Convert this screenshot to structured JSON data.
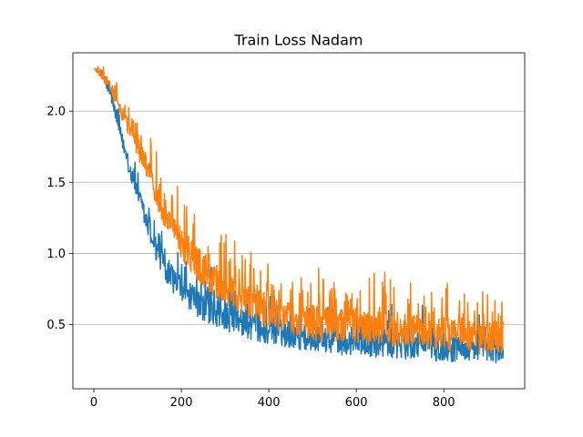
{
  "chart_data": {
    "type": "line",
    "title": "Train Loss Nadam",
    "xlabel": "",
    "ylabel": "",
    "xlim": [
      -48,
      985
    ],
    "ylim": [
      0.05,
      2.41
    ],
    "xticks": [
      0,
      200,
      400,
      600,
      800
    ],
    "xtick_labels": [
      "0",
      "200",
      "400",
      "600",
      "800"
    ],
    "yticks": [
      0.5,
      1.0,
      1.5,
      2.0
    ],
    "ytick_labels": [
      "0.5",
      "1.0",
      "1.5",
      "2.0"
    ],
    "grid": "y-major",
    "legend": "none",
    "colors": {
      "series_1": "#1f77b4",
      "series_2": "#ff7f0e",
      "grid": "#b0b0b0",
      "axes": "#000000"
    },
    "series": [
      {
        "x": [
          0,
          20,
          40,
          60,
          80,
          100,
          120,
          140,
          160,
          180,
          200,
          240,
          280,
          320,
          360,
          400,
          450,
          500,
          550,
          600,
          650,
          700,
          750,
          800,
          850,
          900,
          937
        ],
        "values": [
          2.3,
          2.25,
          2.1,
          1.85,
          1.62,
          1.42,
          1.22,
          1.05,
          0.92,
          0.82,
          0.75,
          0.64,
          0.58,
          0.53,
          0.49,
          0.46,
          0.43,
          0.4,
          0.38,
          0.37,
          0.36,
          0.35,
          0.34,
          0.33,
          0.33,
          0.32,
          0.32
        ],
        "noise": [
          0.0,
          0.04,
          0.06,
          0.08,
          0.1,
          0.12,
          0.14,
          0.15,
          0.15,
          0.15,
          0.16,
          0.16,
          0.16,
          0.16,
          0.16,
          0.16,
          0.16,
          0.15,
          0.15,
          0.15,
          0.15,
          0.15,
          0.15,
          0.15,
          0.15,
          0.15,
          0.15
        ]
      },
      {
        "x": [
          0,
          20,
          40,
          60,
          80,
          100,
          120,
          140,
          160,
          180,
          200,
          240,
          280,
          320,
          360,
          400,
          450,
          500,
          550,
          600,
          650,
          700,
          750,
          800,
          850,
          900,
          937
        ],
        "values": [
          2.3,
          2.24,
          2.16,
          2.02,
          1.88,
          1.75,
          1.6,
          1.45,
          1.3,
          1.18,
          1.07,
          0.92,
          0.8,
          0.71,
          0.65,
          0.59,
          0.54,
          0.51,
          0.49,
          0.48,
          0.47,
          0.46,
          0.44,
          0.43,
          0.42,
          0.41,
          0.4
        ],
        "noise": [
          0.0,
          0.05,
          0.06,
          0.08,
          0.1,
          0.12,
          0.14,
          0.16,
          0.17,
          0.18,
          0.19,
          0.2,
          0.2,
          0.2,
          0.2,
          0.2,
          0.2,
          0.2,
          0.2,
          0.2,
          0.2,
          0.2,
          0.2,
          0.2,
          0.2,
          0.2,
          0.2
        ]
      }
    ]
  }
}
